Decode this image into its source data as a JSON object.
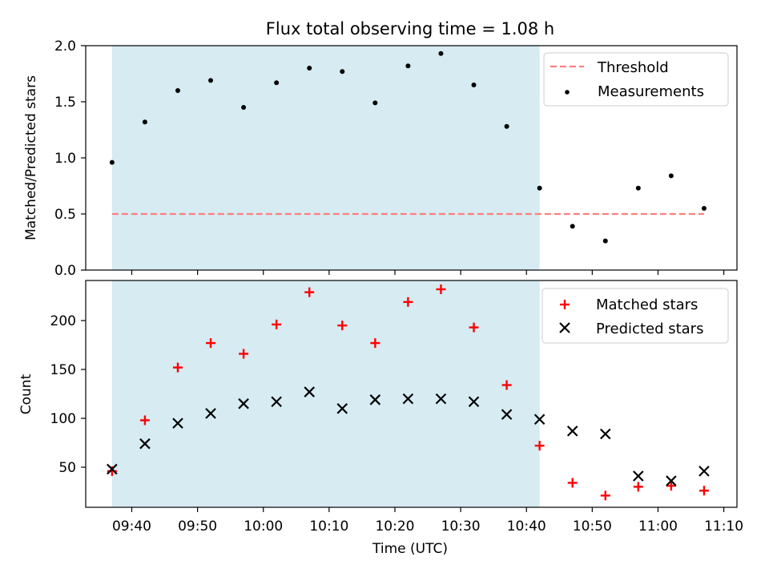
{
  "figure": {
    "title": "Flux total observing time = 1.08 h",
    "xlabel": "Time (UTC)",
    "x_ticks": [
      "09:40",
      "09:50",
      "10:00",
      "10:10",
      "10:20",
      "10:30",
      "10:40",
      "10:50",
      "11:00",
      "11:10"
    ],
    "shade_color": "#add8e6",
    "threshold_color": "#ff7f7f"
  },
  "chart_data": [
    {
      "type": "scatter",
      "ylabel": "Matched/Predicted stars",
      "xlim": [
        "09:33",
        "11:12"
      ],
      "ylim": [
        0,
        2.0
      ],
      "y_ticks": [
        "0.0",
        "0.5",
        "1.0",
        "1.5",
        "2.0"
      ],
      "shaded_span": [
        "09:37",
        "10:42"
      ],
      "legend": "top-right",
      "threshold": {
        "name": "Threshold",
        "value": 0.5,
        "x_range": [
          "09:37",
          "11:07"
        ],
        "style": "dashed",
        "color": "#ff7f7f"
      },
      "series": [
        {
          "name": "Measurements",
          "marker": "dot",
          "color": "#000000",
          "x": [
            "09:37",
            "09:42",
            "09:47",
            "09:52",
            "09:57",
            "10:02",
            "10:07",
            "10:12",
            "10:17",
            "10:22",
            "10:27",
            "10:32",
            "10:37",
            "10:42",
            "10:47",
            "10:52",
            "10:57",
            "11:02",
            "11:07"
          ],
          "values": [
            0.96,
            1.32,
            1.6,
            1.69,
            1.45,
            1.67,
            1.8,
            1.77,
            1.49,
            1.82,
            1.93,
            1.65,
            1.28,
            0.73,
            0.39,
            0.26,
            0.73,
            0.84,
            0.55
          ]
        }
      ]
    },
    {
      "type": "scatter",
      "ylabel": "Count",
      "xlim": [
        "09:33",
        "11:12"
      ],
      "ylim": [
        9,
        241
      ],
      "y_ticks": [
        "50",
        "100",
        "150",
        "200"
      ],
      "shaded_span": [
        "09:37",
        "10:42"
      ],
      "legend": "top-right",
      "series": [
        {
          "name": "Matched stars",
          "marker": "plus",
          "color": "#ff0000",
          "x": [
            "09:37",
            "09:42",
            "09:47",
            "09:52",
            "09:57",
            "10:02",
            "10:07",
            "10:12",
            "10:17",
            "10:22",
            "10:27",
            "10:32",
            "10:37",
            "10:42",
            "10:47",
            "10:52",
            "10:57",
            "11:02",
            "11:07"
          ],
          "values": [
            46,
            98,
            152,
            177,
            166,
            196,
            229,
            195,
            177,
            219,
            232,
            193,
            134,
            72,
            34,
            21,
            30,
            31,
            26
          ]
        },
        {
          "name": "Predicted stars",
          "marker": "x",
          "color": "#000000",
          "x": [
            "09:37",
            "09:42",
            "09:47",
            "09:52",
            "09:57",
            "10:02",
            "10:07",
            "10:12",
            "10:17",
            "10:22",
            "10:27",
            "10:32",
            "10:37",
            "10:42",
            "10:47",
            "10:52",
            "10:57",
            "11:02",
            "11:07"
          ],
          "values": [
            48,
            74,
            95,
            105,
            115,
            117,
            127,
            110,
            119,
            120,
            120,
            117,
            104,
            99,
            87,
            84,
            41,
            36,
            46
          ]
        }
      ]
    }
  ]
}
